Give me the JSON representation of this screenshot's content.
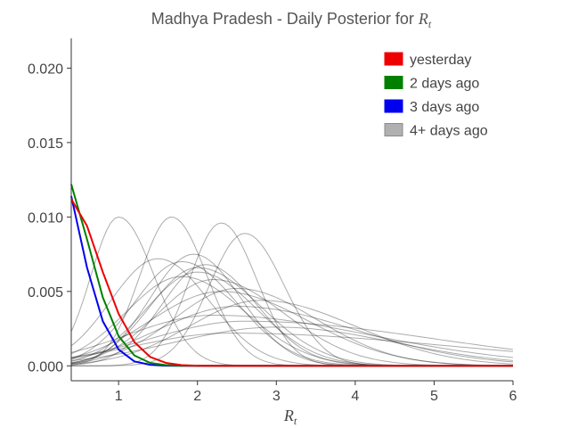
{
  "chart_data": {
    "type": "line",
    "title_prefix": "Madhya Pradesh - Daily Posterior for ",
    "title_var_main": "R",
    "title_var_sub": "t",
    "xlabel_main": "R",
    "xlabel_sub": "t",
    "ylabel": "",
    "xlim": [
      0.4,
      6.0
    ],
    "ylim": [
      -0.001,
      0.022
    ],
    "xticks": [
      1,
      2,
      3,
      4,
      5,
      6
    ],
    "xtick_labels": [
      "1",
      "2",
      "3",
      "4",
      "5",
      "6"
    ],
    "yticks": [
      0.0,
      0.005,
      0.01,
      0.015,
      0.02
    ],
    "ytick_labels": [
      "0.000",
      "0.005",
      "0.010",
      "0.015",
      "0.020"
    ],
    "grid": false,
    "legend_position": "top-right",
    "legend": [
      {
        "label": "yesterday",
        "color": "#ee0000"
      },
      {
        "label": "2 days ago",
        "color": "#008000"
      },
      {
        "label": "3 days ago",
        "color": "#0000ee"
      },
      {
        "label": "4+ days ago",
        "color": "#b0b0b0"
      }
    ],
    "highlight_series": [
      {
        "label": "yesterday",
        "color": "#ee0000",
        "x": [
          0.4,
          0.6,
          0.8,
          1.0,
          1.2,
          1.4,
          1.6,
          1.8,
          2.0,
          2.2,
          2.5,
          3.0,
          6.0
        ],
        "y": [
          0.0112,
          0.0094,
          0.0063,
          0.0035,
          0.0016,
          0.0006,
          0.0002,
          5e-05,
          1e-05,
          0.0,
          0.0,
          0.0,
          0.0
        ]
      },
      {
        "label": "2 days ago",
        "color": "#008000",
        "x": [
          0.4,
          0.6,
          0.8,
          1.0,
          1.2,
          1.4,
          1.6,
          1.8,
          2.0,
          2.5,
          6.0
        ],
        "y": [
          0.0122,
          0.0085,
          0.0046,
          0.002,
          0.0007,
          0.0002,
          5e-05,
          1e-05,
          0.0,
          0.0,
          0.0
        ]
      },
      {
        "label": "3 days ago",
        "color": "#0000ee",
        "x": [
          0.4,
          0.6,
          0.8,
          1.0,
          1.2,
          1.4,
          1.6,
          1.8,
          2.0,
          6.0
        ],
        "y": [
          0.0114,
          0.0066,
          0.003,
          0.0011,
          0.0003,
          7e-05,
          1e-05,
          0.0,
          0.0,
          0.0
        ]
      }
    ],
    "history_series": [
      {
        "mode": 1.0,
        "peak": 0.01,
        "left_width": 0.35,
        "right_width": 0.45
      },
      {
        "mode": 1.67,
        "peak": 0.01,
        "left_width": 0.4,
        "right_width": 0.45
      },
      {
        "mode": 2.3,
        "peak": 0.0096,
        "left_width": 0.4,
        "right_width": 0.45
      },
      {
        "mode": 2.6,
        "peak": 0.0089,
        "left_width": 0.45,
        "right_width": 0.5
      },
      {
        "mode": 1.5,
        "peak": 0.0072,
        "left_width": 0.6,
        "right_width": 0.65
      },
      {
        "mode": 1.8,
        "peak": 0.007,
        "left_width": 0.6,
        "right_width": 0.7
      },
      {
        "mode": 1.95,
        "peak": 0.0075,
        "left_width": 0.55,
        "right_width": 0.6
      },
      {
        "mode": 2.1,
        "peak": 0.0068,
        "left_width": 0.55,
        "right_width": 0.65
      },
      {
        "mode": 2.0,
        "peak": 0.0063,
        "left_width": 0.65,
        "right_width": 0.75
      },
      {
        "mode": 1.8,
        "peak": 0.006,
        "left_width": 0.7,
        "right_width": 0.8
      },
      {
        "mode": 2.2,
        "peak": 0.0058,
        "left_width": 0.7,
        "right_width": 0.9
      },
      {
        "mode": 2.5,
        "peak": 0.0052,
        "left_width": 0.8,
        "right_width": 1.0
      },
      {
        "mode": 2.3,
        "peak": 0.005,
        "left_width": 0.9,
        "right_width": 1.1
      },
      {
        "mode": 2.8,
        "peak": 0.0044,
        "left_width": 0.9,
        "right_width": 1.2
      },
      {
        "mode": 2.5,
        "peak": 0.004,
        "left_width": 1.0,
        "right_width": 1.5
      },
      {
        "mode": 2.2,
        "peak": 0.0034,
        "left_width": 1.1,
        "right_width": 2.0
      },
      {
        "mode": 2.6,
        "peak": 0.003,
        "left_width": 1.2,
        "right_width": 2.4
      },
      {
        "mode": 3.0,
        "peak": 0.0026,
        "left_width": 1.3,
        "right_width": 1.5
      },
      {
        "mode": 2.4,
        "peak": 0.0022,
        "left_width": 1.2,
        "right_width": 2.8
      },
      {
        "mode": 2.0,
        "peak": 0.0066,
        "left_width": 0.6,
        "right_width": 0.8
      }
    ]
  }
}
